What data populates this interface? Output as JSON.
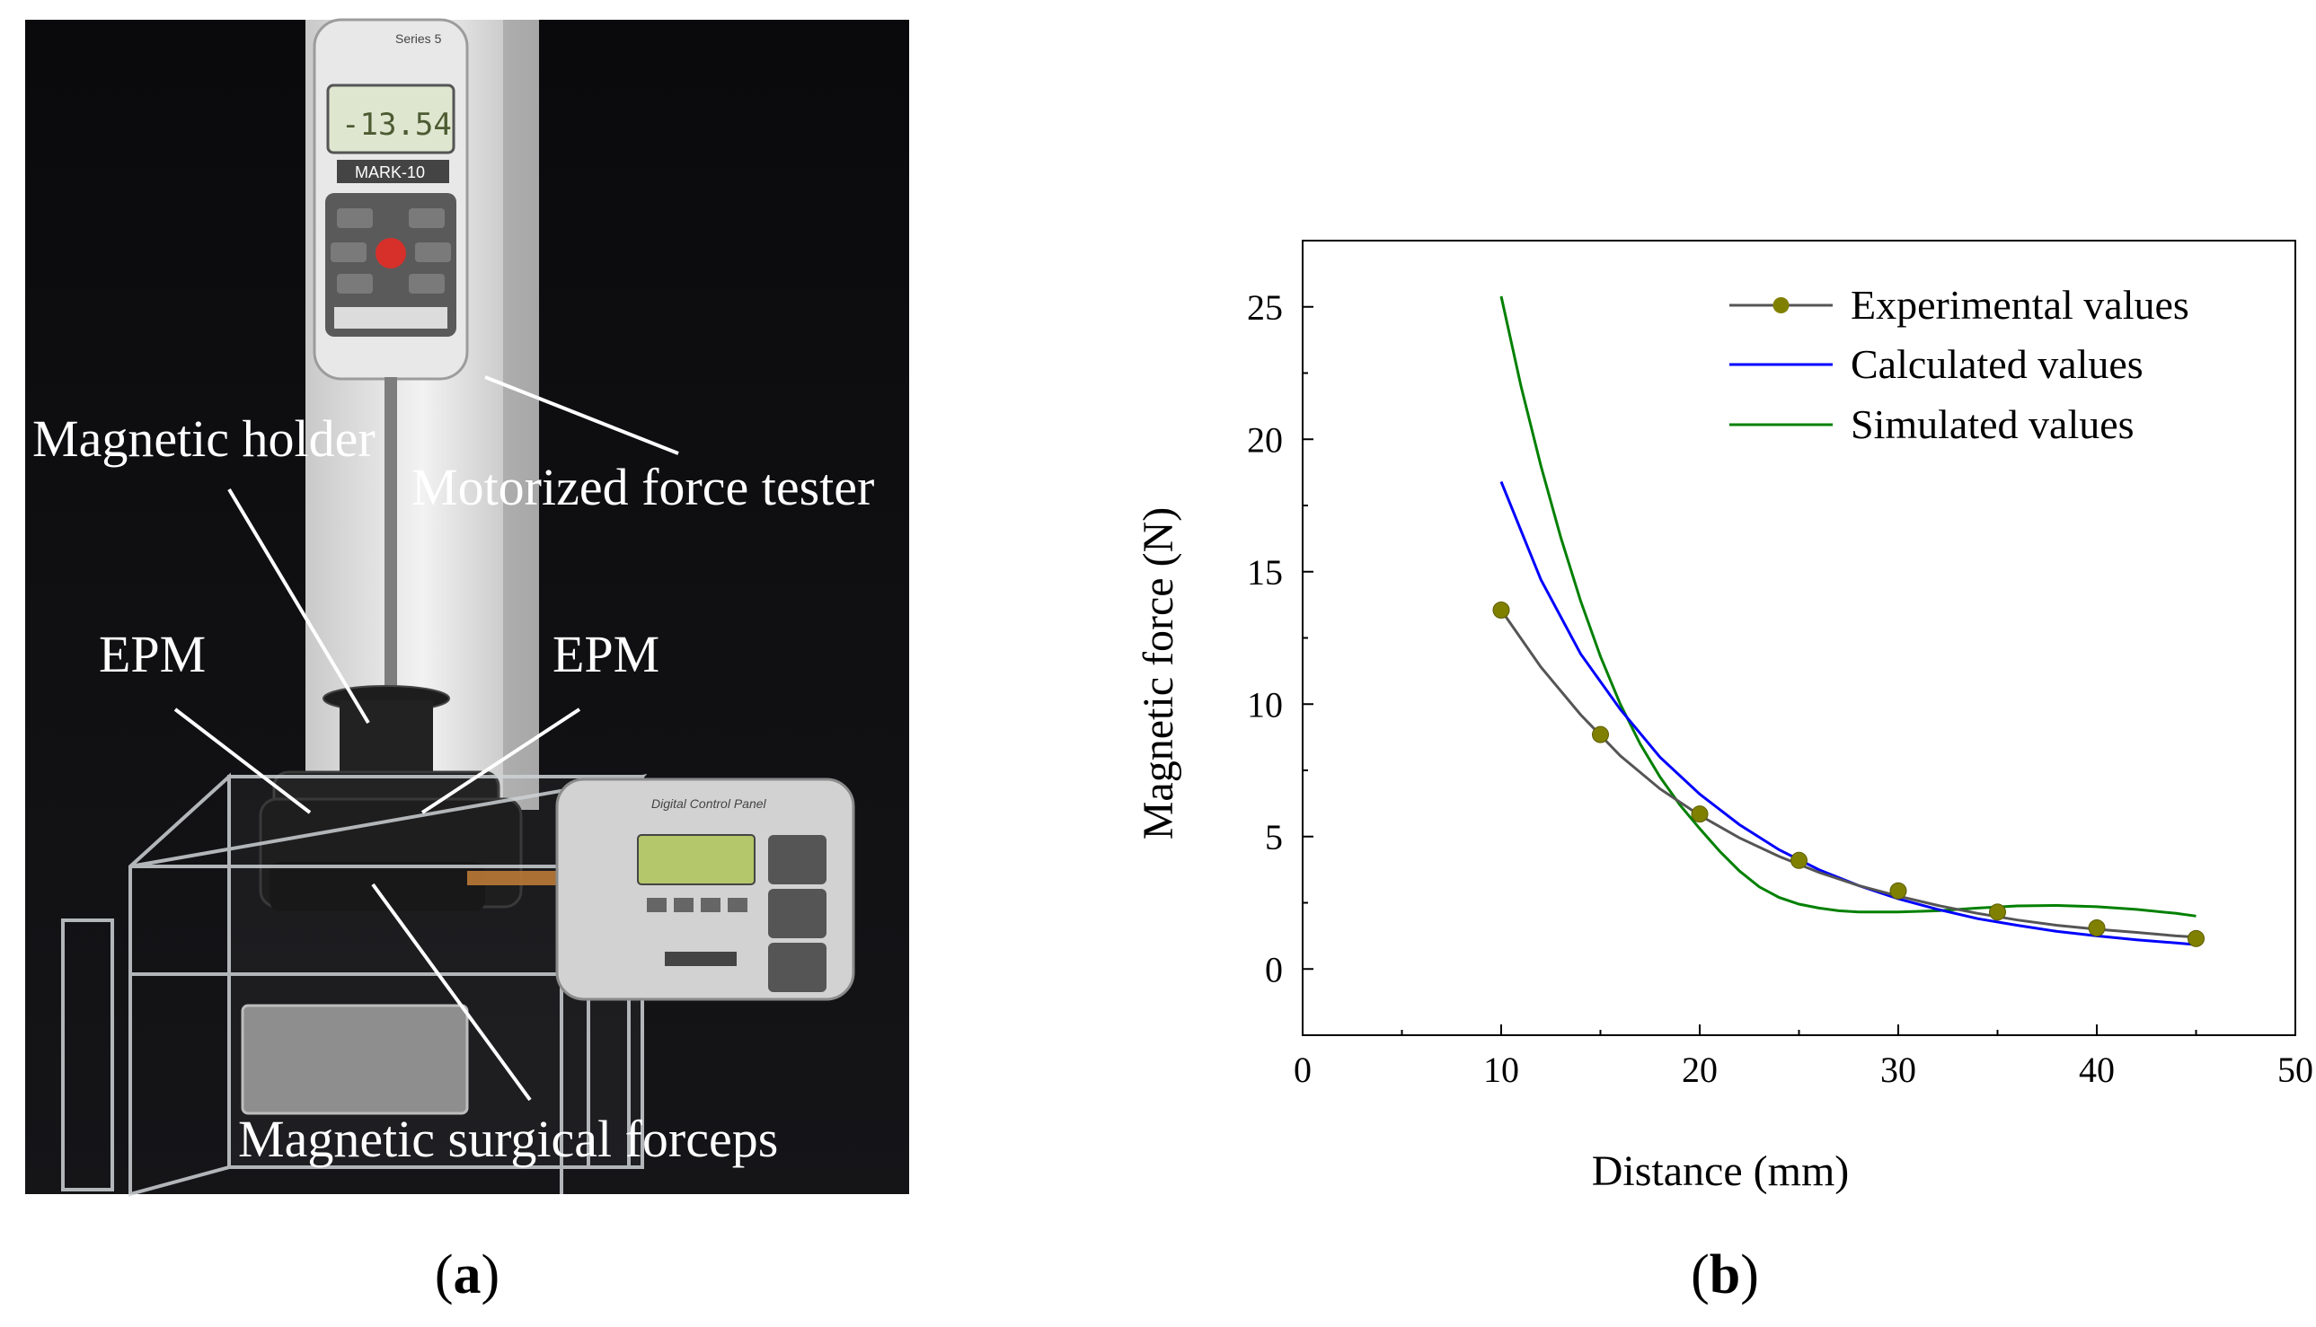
{
  "photo": {
    "labels": {
      "magnetic_holder": "Magnetic holder",
      "motorized_force_tester": "Motorized force tester",
      "epm_left": "EPM",
      "epm_right": "EPM",
      "magnetic_surgical_forceps": "Magnetic surgical forceps"
    },
    "device_display": {
      "reading": "-13.54",
      "brand": "MARK-10",
      "series": "Series 5",
      "control_panel_title": "Digital Control Panel"
    }
  },
  "panels": {
    "a": {
      "open": "(",
      "letter": "a",
      "close": ")"
    },
    "b": {
      "open": "(",
      "letter": "b",
      "close": ")"
    }
  },
  "chart_data": {
    "type": "line",
    "xlabel": "Distance (mm)",
    "ylabel": "Magnetic force (N)",
    "xlim": [
      0,
      50
    ],
    "ylim": [
      -2.5,
      27.5
    ],
    "xticks": [
      0,
      10,
      20,
      30,
      40,
      50
    ],
    "yticks": [
      0,
      5,
      10,
      15,
      20,
      25
    ],
    "grid": false,
    "legend_position": "top-right",
    "series": [
      {
        "name": "Experimental values",
        "color": "#555555",
        "marker_color": "#808000",
        "markers": true,
        "x": [
          10,
          15,
          20,
          25,
          30,
          35,
          40,
          45
        ],
        "y": [
          13.55,
          8.85,
          5.85,
          4.1,
          2.95,
          2.15,
          1.55,
          1.15
        ],
        "fit": [
          [
            10,
            13.55
          ],
          [
            12,
            11.4
          ],
          [
            14,
            9.6
          ],
          [
            16,
            8.05
          ],
          [
            18,
            6.8
          ],
          [
            20,
            5.8
          ],
          [
            22,
            4.95
          ],
          [
            24,
            4.25
          ],
          [
            26,
            3.65
          ],
          [
            28,
            3.15
          ],
          [
            30,
            2.75
          ],
          [
            32,
            2.4
          ],
          [
            34,
            2.1
          ],
          [
            36,
            1.85
          ],
          [
            38,
            1.65
          ],
          [
            40,
            1.5
          ],
          [
            42,
            1.38
          ],
          [
            44,
            1.25
          ],
          [
            45,
            1.2
          ]
        ]
      },
      {
        "name": "Calculated values",
        "color": "#0000ff",
        "markers": false,
        "points": [
          [
            10,
            18.4
          ],
          [
            12,
            14.7
          ],
          [
            14,
            11.9
          ],
          [
            16,
            9.8
          ],
          [
            18,
            8.0
          ],
          [
            20,
            6.6
          ],
          [
            22,
            5.45
          ],
          [
            24,
            4.5
          ],
          [
            26,
            3.75
          ],
          [
            28,
            3.15
          ],
          [
            30,
            2.65
          ],
          [
            32,
            2.25
          ],
          [
            34,
            1.9
          ],
          [
            36,
            1.65
          ],
          [
            38,
            1.42
          ],
          [
            40,
            1.25
          ],
          [
            42,
            1.1
          ],
          [
            44,
            0.98
          ],
          [
            45,
            0.92
          ]
        ]
      },
      {
        "name": "Simulated values",
        "color": "#008000",
        "markers": false,
        "points": [
          [
            10,
            25.4
          ],
          [
            11,
            22.0
          ],
          [
            12,
            19.0
          ],
          [
            13,
            16.3
          ],
          [
            14,
            13.9
          ],
          [
            15,
            11.8
          ],
          [
            16,
            10.0
          ],
          [
            17,
            8.5
          ],
          [
            18,
            7.25
          ],
          [
            19,
            6.2
          ],
          [
            20,
            5.3
          ],
          [
            21,
            4.45
          ],
          [
            22,
            3.7
          ],
          [
            23,
            3.1
          ],
          [
            24,
            2.7
          ],
          [
            25,
            2.45
          ],
          [
            26,
            2.3
          ],
          [
            27,
            2.2
          ],
          [
            28,
            2.15
          ],
          [
            30,
            2.15
          ],
          [
            32,
            2.2
          ],
          [
            34,
            2.3
          ],
          [
            36,
            2.38
          ],
          [
            38,
            2.4
          ],
          [
            40,
            2.35
          ],
          [
            42,
            2.25
          ],
          [
            44,
            2.1
          ],
          [
            45,
            2.0
          ]
        ]
      }
    ]
  }
}
